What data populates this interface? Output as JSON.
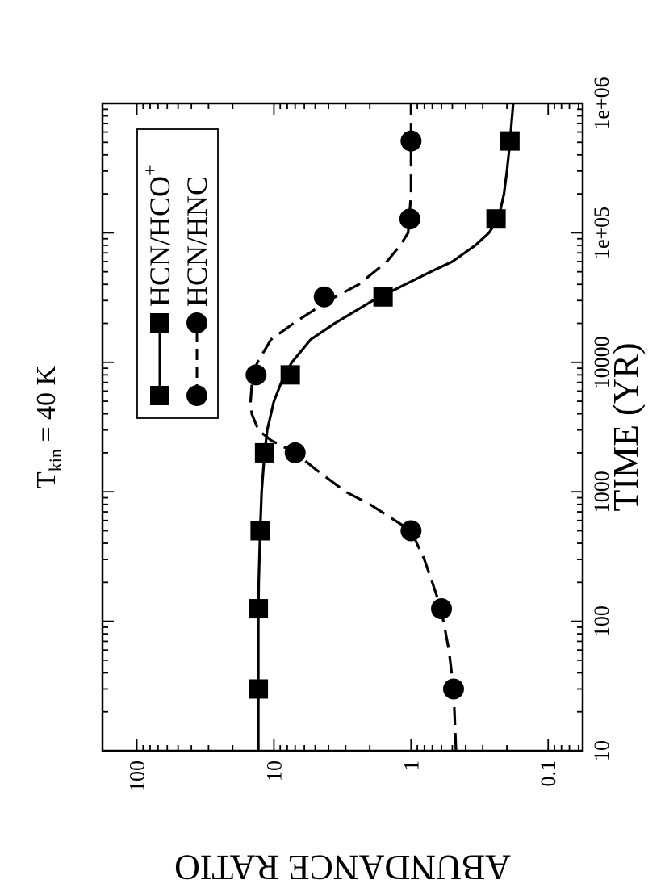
{
  "chart_data": {
    "type": "line",
    "title": "T",
    "title_sub": "kin",
    "title_rest": " = 40 K",
    "xlabel": "TIME (YR)",
    "ylabel": "ABUNDANCE RATIO",
    "x_scale": "log",
    "y_scale": "log",
    "xlim": [
      10,
      1000000
    ],
    "ylim": [
      0.056,
      178
    ],
    "x_ticks": [
      10,
      100,
      1000,
      10000,
      100000,
      1000000
    ],
    "x_tick_labels": [
      "10",
      "100",
      "1000",
      "10000",
      "1e+05",
      "1e+06"
    ],
    "y_ticks": [
      0.1,
      1,
      10,
      100
    ],
    "y_tick_labels": [
      "0.1",
      "1",
      "10",
      "100"
    ],
    "orientation": "rotated-90-ccw",
    "legend_position": "top-left",
    "series": [
      {
        "name": "HCN/HCO",
        "name_sup": "+",
        "marker": "square",
        "line": "solid",
        "color": "#000000",
        "curve": {
          "x": [
            10,
            20,
            50,
            100,
            200,
            500,
            1000,
            2000,
            3000,
            5000,
            8000,
            10000,
            15000,
            20000,
            30000,
            40000,
            50000,
            60000,
            80000,
            100000,
            130000,
            200000,
            300000,
            500000,
            700000,
            1000000
          ],
          "y": [
            13,
            13,
            13,
            13,
            12.9,
            12.6,
            12.3,
            11.7,
            11.2,
            10,
            8.4,
            7.4,
            5.4,
            3.6,
            1.9,
            1.1,
            0.72,
            0.5,
            0.34,
            0.27,
            0.23,
            0.21,
            0.2,
            0.19,
            0.185,
            0.18
          ]
        },
        "markers": {
          "x": [
            30,
            125,
            500,
            2000,
            8000,
            32000,
            128000,
            512000
          ],
          "y": [
            13,
            13,
            12.6,
            11.7,
            7.6,
            1.6,
            0.24,
            0.19
          ]
        }
      },
      {
        "name": "HCN/HNC",
        "marker": "circle",
        "line": "dashed",
        "color": "#000000",
        "curve": {
          "x": [
            10,
            30,
            60,
            100,
            150,
            200,
            300,
            500,
            800,
            1000,
            1500,
            2000,
            2500,
            3000,
            4000,
            5000,
            8000,
            10000,
            15000,
            20000,
            30000,
            40000,
            60000,
            80000,
            100000,
            200000,
            500000,
            1000000
          ],
          "y": [
            0.47,
            0.49,
            0.53,
            0.58,
            0.64,
            0.7,
            0.8,
            1.0,
            2.0,
            3.0,
            5.0,
            7.0,
            10.5,
            13,
            14.5,
            14.8,
            14.3,
            13.2,
            10.5,
            7.2,
            4.0,
            2.4,
            1.5,
            1.2,
            1.05,
            1.0,
            1.0,
            1.0
          ]
        },
        "markers": {
          "x": [
            30,
            125,
            500,
            2000,
            8000,
            32000,
            128000,
            512000
          ],
          "y": [
            0.49,
            0.6,
            1.0,
            7.0,
            13.5,
            4.3,
            1.02,
            1.0
          ]
        }
      }
    ]
  }
}
